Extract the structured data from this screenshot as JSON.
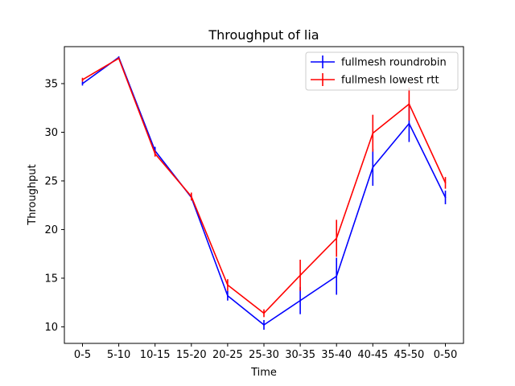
{
  "chart_data": {
    "type": "line",
    "title": "Throughput of lia",
    "xlabel": "Time",
    "ylabel": "Throughput",
    "categories": [
      "0-5",
      "5-10",
      "10-15",
      "15-20",
      "20-25",
      "25-30",
      "30-35",
      "35-40",
      "40-45",
      "45-50",
      "0-50"
    ],
    "ylim": [
      8.3,
      38.8
    ],
    "yticks": [
      10,
      15,
      20,
      25,
      30,
      35
    ],
    "grid": false,
    "legend_position": "top-right",
    "series": [
      {
        "name": "fullmesh roundrobin",
        "color": "#0000ff",
        "values": [
          35.0,
          37.7,
          28.1,
          23.3,
          13.2,
          10.2,
          12.7,
          15.2,
          26.4,
          30.9,
          23.3
        ],
        "errors": [
          0.2,
          0.1,
          0.4,
          0.3,
          0.5,
          0.5,
          1.4,
          1.9,
          1.9,
          1.9,
          0.7
        ]
      },
      {
        "name": "fullmesh lowest rtt",
        "color": "#ff0000",
        "values": [
          35.4,
          37.6,
          27.8,
          23.4,
          14.3,
          11.4,
          15.3,
          19.1,
          29.9,
          32.9,
          24.8
        ],
        "errors": [
          0.2,
          0.1,
          0.3,
          0.4,
          0.6,
          0.4,
          1.6,
          1.9,
          1.9,
          1.7,
          0.6
        ]
      }
    ]
  }
}
